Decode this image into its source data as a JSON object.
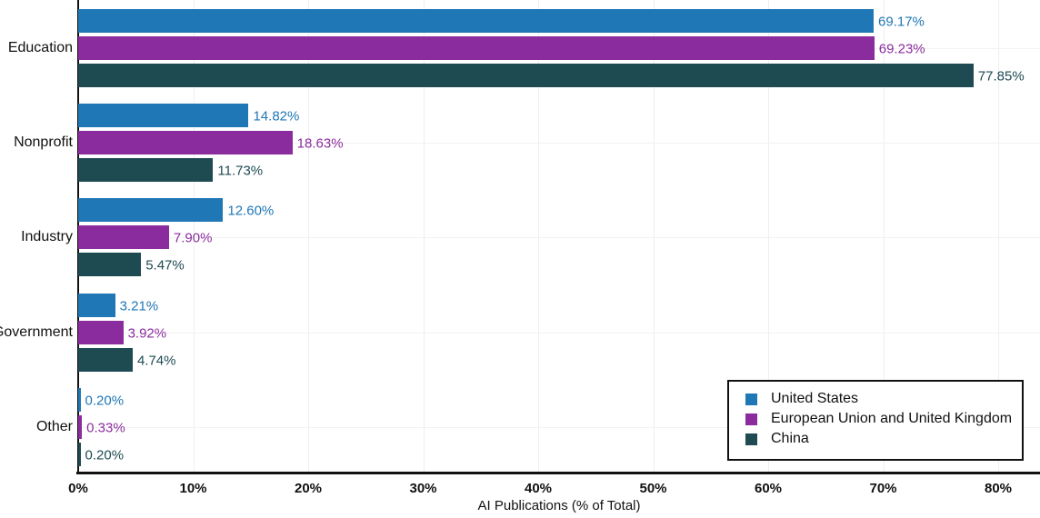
{
  "chart_data": {
    "type": "bar",
    "orientation": "horizontal",
    "xlabel": "AI Publications (% of Total)",
    "categories": [
      "Education",
      "Nonprofit",
      "Industry",
      "Government",
      "Other"
    ],
    "series": [
      {
        "name": "United States",
        "color": "#2077b5",
        "values": [
          69.17,
          14.82,
          12.6,
          3.21,
          0.2
        ],
        "labels": [
          "69.17%",
          "14.82%",
          "12.60%",
          "3.21%",
          "0.20%"
        ]
      },
      {
        "name": "European Union and United Kingdom",
        "color": "#8b2c9e",
        "values": [
          69.23,
          18.63,
          7.9,
          3.92,
          0.33
        ],
        "labels": [
          "69.23%",
          "18.63%",
          "7.90%",
          "3.92%",
          "0.33%"
        ]
      },
      {
        "name": "China",
        "color": "#1e4a52",
        "values": [
          77.85,
          11.73,
          5.47,
          4.74,
          0.2
        ],
        "labels": [
          "77.85%",
          "11.73%",
          "5.47%",
          "4.74%",
          "0.20%"
        ]
      }
    ],
    "x_ticks": [
      {
        "value": 0,
        "label": "0%"
      },
      {
        "value": 10,
        "label": "10%"
      },
      {
        "value": 20,
        "label": "20%"
      },
      {
        "value": 30,
        "label": "30%"
      },
      {
        "value": 40,
        "label": "40%"
      },
      {
        "value": 50,
        "label": "50%"
      },
      {
        "value": 60,
        "label": "60%"
      },
      {
        "value": 70,
        "label": "70%"
      },
      {
        "value": 80,
        "label": "80%"
      }
    ],
    "xlim": [
      0,
      80
    ],
    "grid": true,
    "legend_position": "inside-bottom-right",
    "colors": {
      "axis": "#111111",
      "gridline": "#efefef",
      "background": "#ffffff"
    }
  }
}
